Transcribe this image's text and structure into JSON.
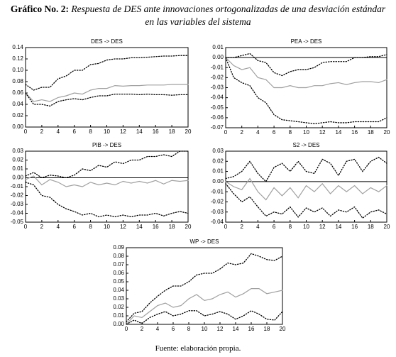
{
  "figure": {
    "label": "Gráfico No. 2:",
    "caption": "Respuesta de DES ante innovaciones ortogonalizadas de una desviación estándar en las variables del sistema",
    "source": "Fuente: elaboración propia."
  },
  "chart_data": [
    {
      "type": "line",
      "title": "DES -> DES",
      "zero_line": false,
      "x": [
        0,
        1,
        2,
        3,
        4,
        5,
        6,
        7,
        8,
        9,
        10,
        11,
        12,
        13,
        14,
        15,
        16,
        17,
        18,
        19,
        20
      ],
      "xlim": [
        0,
        20
      ],
      "xticks": [
        0,
        2,
        4,
        6,
        8,
        10,
        12,
        14,
        16,
        18,
        20
      ],
      "ylim": [
        0,
        0.14
      ],
      "yticks": [
        {
          "value": 0,
          "label": "0.00"
        },
        0.02,
        0.04,
        0.06,
        0.08,
        {
          "value": 0.1,
          "label": "0.10"
        },
        0.12,
        0.14
      ],
      "series": [
        {
          "color": "#a0a0a0",
          "line_style": "solid",
          "values": [
            0.06,
            0.045,
            0.048,
            0.045,
            0.052,
            0.055,
            0.06,
            0.058,
            0.065,
            0.068,
            0.068,
            0.073,
            0.072,
            0.073,
            0.073,
            0.074,
            0.074,
            0.074,
            0.075,
            0.075,
            0.075
          ]
        },
        {
          "color": "#000000",
          "line_style": "dotted",
          "values": [
            0.075,
            0.065,
            0.07,
            0.07,
            0.085,
            0.09,
            0.1,
            0.1,
            0.11,
            0.112,
            0.118,
            0.12,
            0.12,
            0.122,
            0.122,
            0.123,
            0.124,
            0.125,
            0.125,
            0.126,
            0.126
          ]
        },
        {
          "color": "#000000",
          "line_style": "dotted",
          "values": [
            0.06,
            0.04,
            0.04,
            0.037,
            0.045,
            0.048,
            0.05,
            0.048,
            0.052,
            0.055,
            0.055,
            0.058,
            0.058,
            0.058,
            0.057,
            0.058,
            0.057,
            0.057,
            0.056,
            0.057,
            0.057
          ]
        }
      ]
    },
    {
      "type": "line",
      "title": "PEA -> DES",
      "zero_line": true,
      "x": [
        0,
        1,
        2,
        3,
        4,
        5,
        6,
        7,
        8,
        9,
        10,
        11,
        12,
        13,
        14,
        15,
        16,
        17,
        18,
        19,
        20
      ],
      "xlim": [
        0,
        20
      ],
      "xticks": [
        0,
        2,
        4,
        6,
        8,
        10,
        12,
        14,
        16,
        18,
        20
      ],
      "ylim": [
        -0.07,
        0.01
      ],
      "yticks": [
        0.01,
        {
          "value": 0,
          "label": "0.00"
        },
        -0.01,
        -0.02,
        -0.03,
        -0.04,
        -0.05,
        -0.06,
        -0.07
      ],
      "series": [
        {
          "color": "#a0a0a0",
          "line_style": "solid",
          "values": [
            0,
            -0.008,
            -0.012,
            -0.01,
            -0.02,
            -0.022,
            -0.03,
            -0.03,
            -0.028,
            -0.03,
            -0.03,
            -0.028,
            -0.028,
            -0.026,
            -0.025,
            -0.027,
            -0.025,
            -0.024,
            -0.024,
            -0.025,
            -0.022
          ]
        },
        {
          "color": "#000000",
          "line_style": "dotted",
          "values": [
            0,
            0,
            0.002,
            0.004,
            -0.003,
            -0.005,
            -0.015,
            -0.018,
            -0.014,
            -0.012,
            -0.012,
            -0.01,
            -0.005,
            -0.004,
            -0.004,
            -0.004,
            0,
            0,
            0.001,
            0.001,
            0.003
          ]
        },
        {
          "color": "#000000",
          "line_style": "dotted",
          "values": [
            0,
            -0.02,
            -0.025,
            -0.028,
            -0.04,
            -0.045,
            -0.057,
            -0.062,
            -0.063,
            -0.064,
            -0.065,
            -0.066,
            -0.065,
            -0.064,
            -0.065,
            -0.065,
            -0.064,
            -0.064,
            -0.064,
            -0.064,
            -0.06
          ]
        }
      ]
    },
    {
      "type": "line",
      "title": "PIB -> DES",
      "zero_line": true,
      "x": [
        0,
        1,
        2,
        3,
        4,
        5,
        6,
        7,
        8,
        9,
        10,
        11,
        12,
        13,
        14,
        15,
        16,
        17,
        18,
        19,
        20
      ],
      "xlim": [
        0,
        20
      ],
      "xticks": [
        0,
        2,
        4,
        6,
        8,
        10,
        12,
        14,
        16,
        18,
        20
      ],
      "ylim": [
        -0.05,
        0.03
      ],
      "yticks": [
        0.03,
        0.02,
        0.01,
        {
          "value": 0,
          "label": "0.00"
        },
        -0.01,
        -0.02,
        -0.03,
        -0.04,
        -0.05
      ],
      "series": [
        {
          "color": "#a0a0a0",
          "line_style": "solid",
          "values": [
            -0.002,
            0.002,
            -0.008,
            -0.002,
            -0.005,
            -0.01,
            -0.008,
            -0.01,
            -0.005,
            -0.008,
            -0.006,
            -0.008,
            -0.004,
            -0.006,
            -0.004,
            -0.006,
            -0.003,
            -0.007,
            -0.003,
            -0.004,
            -0.003
          ]
        },
        {
          "color": "#000000",
          "line_style": "dotted",
          "values": [
            0.002,
            0.006,
            0,
            0.003,
            0.002,
            0,
            0.003,
            0.01,
            0.008,
            0.014,
            0.012,
            0.018,
            0.016,
            0.02,
            0.02,
            0.024,
            0.024,
            0.026,
            0.024,
            0.03,
            0.03
          ]
        },
        {
          "color": "#000000",
          "line_style": "dotted",
          "values": [
            -0.005,
            -0.008,
            -0.02,
            -0.022,
            -0.03,
            -0.035,
            -0.038,
            -0.042,
            -0.04,
            -0.044,
            -0.042,
            -0.044,
            -0.042,
            -0.044,
            -0.042,
            -0.042,
            -0.04,
            -0.043,
            -0.04,
            -0.038,
            -0.04
          ]
        }
      ]
    },
    {
      "type": "line",
      "title": "S2 -> DES",
      "zero_line": true,
      "x": [
        0,
        1,
        2,
        3,
        4,
        5,
        6,
        7,
        8,
        9,
        10,
        11,
        12,
        13,
        14,
        15,
        16,
        17,
        18,
        19,
        20
      ],
      "xlim": [
        0,
        20
      ],
      "xticks": [
        0,
        2,
        4,
        6,
        8,
        10,
        12,
        14,
        16,
        18,
        20
      ],
      "ylim": [
        -0.04,
        0.03
      ],
      "yticks": [
        0.03,
        0.02,
        0.01,
        {
          "value": 0,
          "label": "0.00"
        },
        -0.01,
        -0.02,
        -0.03,
        -0.04
      ],
      "series": [
        {
          "color": "#a0a0a0",
          "line_style": "solid",
          "values": [
            0,
            -0.005,
            -0.008,
            0.003,
            -0.01,
            -0.018,
            -0.006,
            -0.014,
            -0.006,
            -0.016,
            -0.004,
            -0.01,
            -0.002,
            -0.012,
            -0.004,
            -0.01,
            -0.004,
            -0.012,
            -0.006,
            -0.01,
            -0.004
          ]
        },
        {
          "color": "#000000",
          "line_style": "dotted",
          "values": [
            0.003,
            0.005,
            0.01,
            0.02,
            0.008,
            0,
            0.014,
            0.018,
            0.01,
            0.02,
            0.01,
            0.008,
            0.022,
            0.018,
            0.006,
            0.02,
            0.022,
            0.01,
            0.02,
            0.024,
            0.018
          ]
        },
        {
          "color": "#000000",
          "line_style": "dotted",
          "values": [
            -0.002,
            -0.012,
            -0.02,
            -0.015,
            -0.025,
            -0.034,
            -0.03,
            -0.032,
            -0.025,
            -0.035,
            -0.026,
            -0.03,
            -0.026,
            -0.034,
            -0.028,
            -0.03,
            -0.025,
            -0.036,
            -0.03,
            -0.028,
            -0.032
          ]
        }
      ]
    },
    {
      "type": "line",
      "title": "WP -> DES",
      "zero_line": false,
      "x": [
        0,
        1,
        2,
        3,
        4,
        5,
        6,
        7,
        8,
        9,
        10,
        11,
        12,
        13,
        14,
        15,
        16,
        17,
        18,
        19,
        20
      ],
      "xlim": [
        0,
        20
      ],
      "xticks": [
        0,
        2,
        4,
        6,
        8,
        10,
        12,
        14,
        16,
        18,
        20
      ],
      "ylim": [
        0,
        0.09
      ],
      "yticks": [
        {
          "value": 0,
          "label": "0.00"
        },
        0.01,
        0.02,
        0.03,
        0.04,
        0.05,
        0.06,
        0.07,
        0.08,
        0.09
      ],
      "series": [
        {
          "color": "#a0a0a0",
          "line_style": "solid",
          "values": [
            0,
            0.01,
            0.008,
            0.015,
            0.022,
            0.025,
            0.02,
            0.022,
            0.03,
            0.035,
            0.028,
            0.03,
            0.035,
            0.038,
            0.032,
            0.036,
            0.042,
            0.042,
            0.036,
            0.038,
            0.04
          ]
        },
        {
          "color": "#000000",
          "line_style": "dotted",
          "values": [
            0.003,
            0.013,
            0.015,
            0.025,
            0.033,
            0.04,
            0.045,
            0.045,
            0.05,
            0.058,
            0.06,
            0.06,
            0.065,
            0.072,
            0.07,
            0.072,
            0.083,
            0.08,
            0.076,
            0.075,
            0.08
          ]
        },
        {
          "color": "#000000",
          "line_style": "dotted",
          "values": [
            0,
            0.005,
            0.001,
            0.008,
            0.012,
            0.015,
            0.01,
            0.012,
            0.016,
            0.016,
            0.01,
            0.012,
            0.015,
            0.012,
            0.006,
            0.01,
            0.016,
            0.012,
            0.006,
            0.005,
            0.015
          ]
        }
      ]
    }
  ]
}
